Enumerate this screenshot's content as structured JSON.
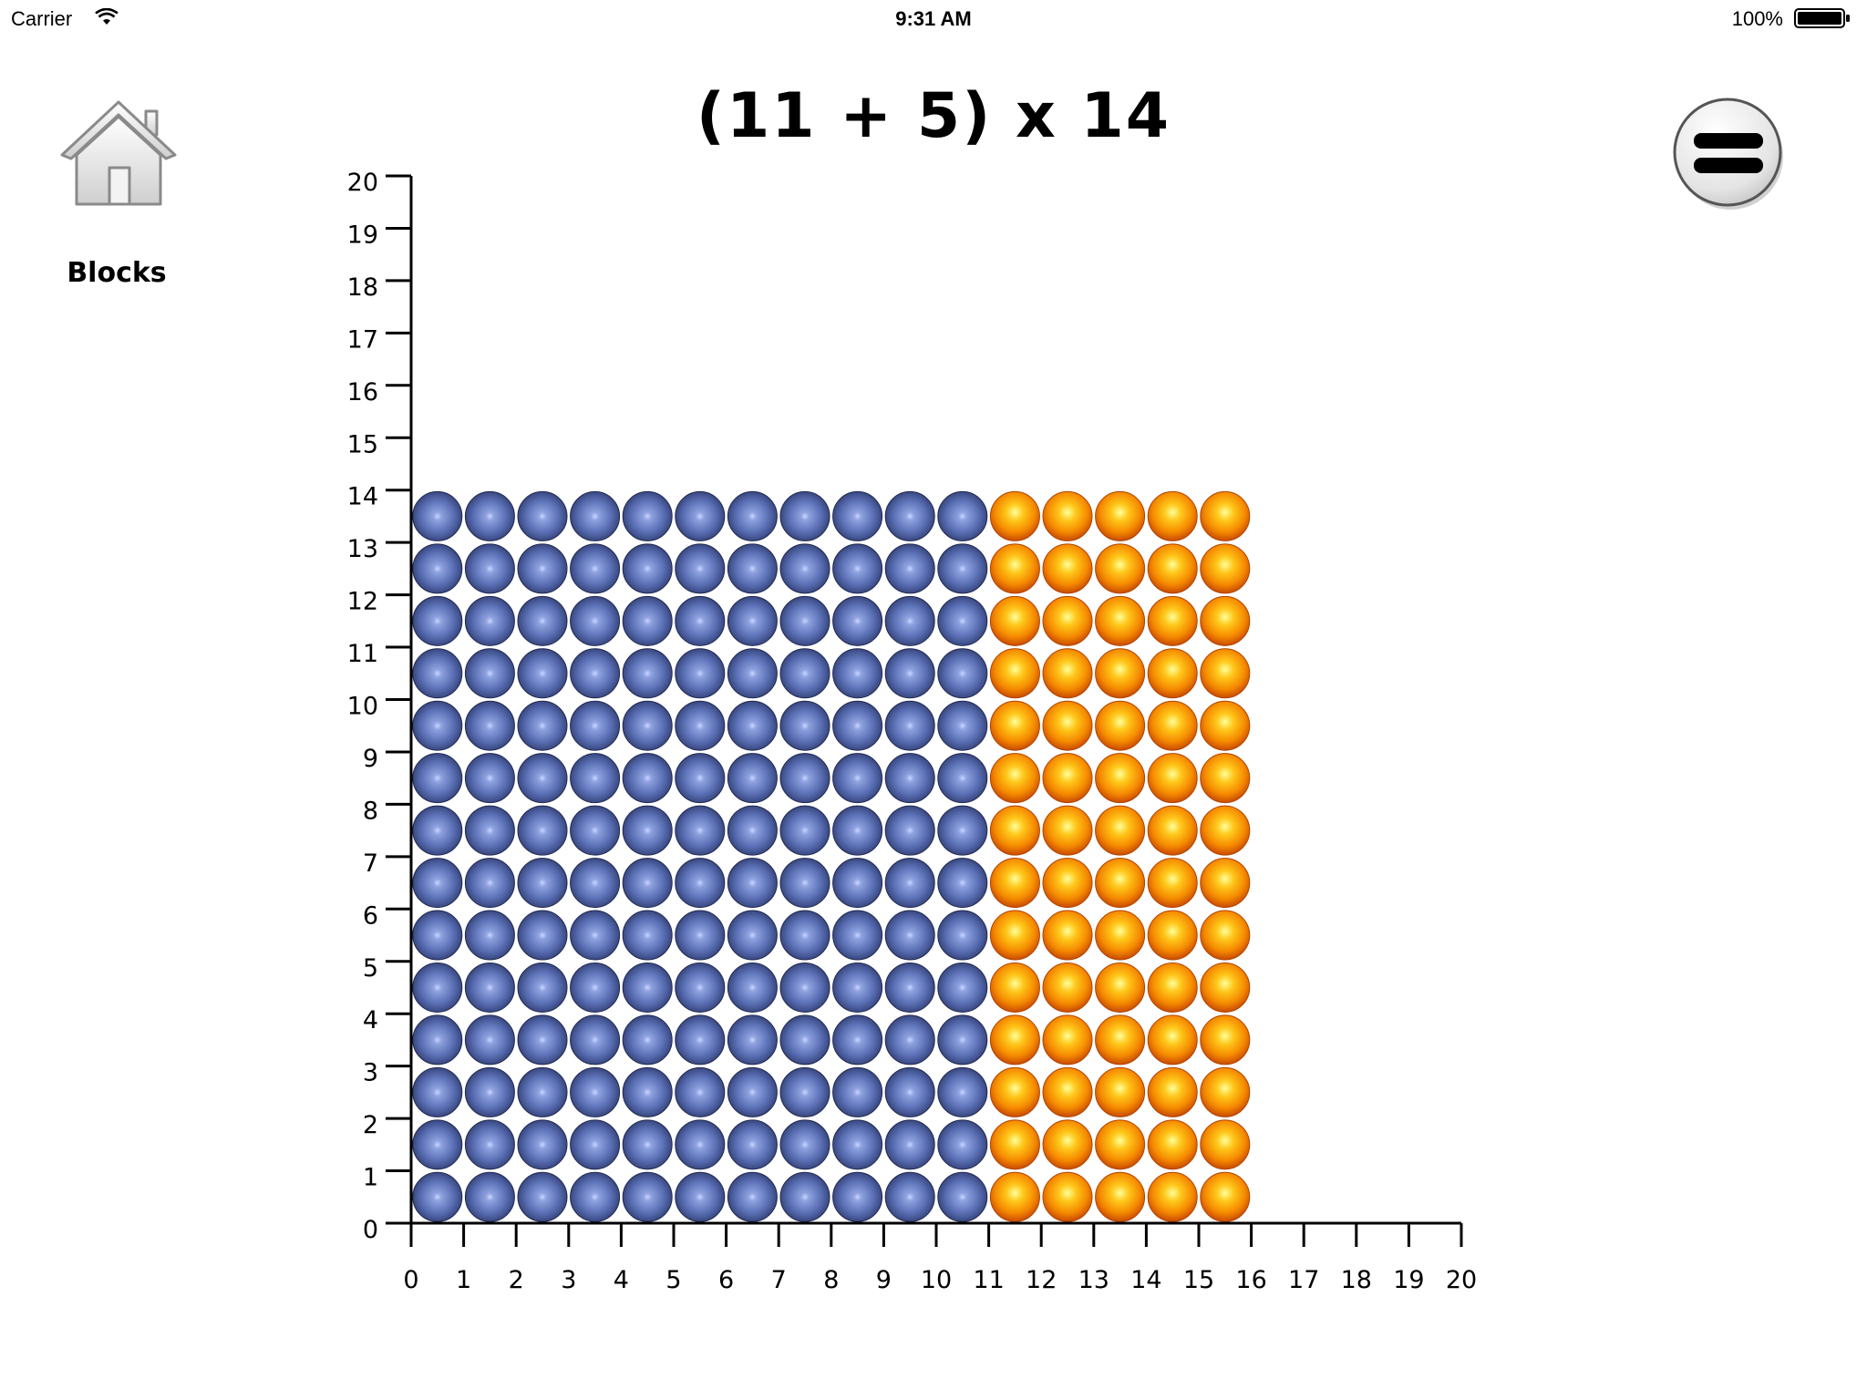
{
  "status_bar": {
    "carrier": "Carrier",
    "time": "9:31 AM",
    "battery_percent": "100%"
  },
  "equation": "(11 + 5) x 14",
  "home": {
    "icon": "house-icon",
    "label": "Blocks"
  },
  "equals_button": {
    "icon": "equals-icon"
  },
  "chart_data": {
    "type": "scatter",
    "x_ticks": [
      "0",
      "1",
      "2",
      "3",
      "4",
      "5",
      "6",
      "7",
      "8",
      "9",
      "10",
      "11",
      "12",
      "13",
      "14",
      "15",
      "16",
      "17",
      "18",
      "19",
      "20"
    ],
    "y_ticks": [
      "0",
      "1",
      "2",
      "3",
      "4",
      "5",
      "6",
      "7",
      "8",
      "9",
      "10",
      "11",
      "12",
      "13",
      "14",
      "15",
      "16",
      "17",
      "18",
      "19",
      "20"
    ],
    "xlim": [
      0,
      20
    ],
    "ylim": [
      0,
      20
    ],
    "grid": false,
    "series": [
      {
        "color": "#5a6fb4",
        "x_range": [
          0,
          11
        ],
        "y_range": [
          0,
          14
        ],
        "count": 154
      },
      {
        "color": "#f58a00",
        "x_range": [
          11,
          16
        ],
        "y_range": [
          0,
          14
        ],
        "count": 70
      }
    ]
  }
}
